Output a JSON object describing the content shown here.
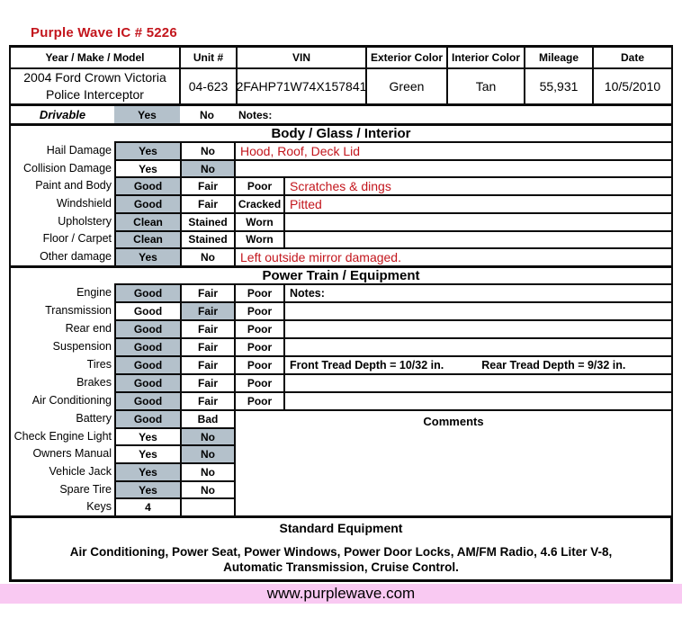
{
  "colors": {
    "red": "#c3161d",
    "highlight": "#b4c1cb",
    "pink": "#f9c9f2",
    "ink": "#0b0b0b"
  },
  "title": "Purple Wave IC # 5226",
  "vehicle": {
    "headers": [
      "Year / Make / Model",
      "Unit #",
      "VIN",
      "Exterior Color",
      "Interior Color",
      "Mileage",
      "Date"
    ],
    "model_line1": "2004 Ford Crown Victoria",
    "model_line2": "Police Interceptor",
    "unit": "04-623",
    "vin": "2FAHP71W74X157841",
    "exterior": "Green",
    "interior": "Tan",
    "mileage": "55,931",
    "date": "10/5/2010"
  },
  "drivable": {
    "label": "Drivable",
    "opts": [
      {
        "label": "Yes",
        "selected": true
      },
      {
        "label": "No",
        "selected": false
      }
    ],
    "notes_label": "Notes:"
  },
  "body": {
    "title": "Body / Glass / Interior",
    "rows": [
      {
        "label": "Hail Damage",
        "opts": [
          {
            "label": "Yes",
            "selected": true
          },
          {
            "label": "No",
            "selected": false
          }
        ],
        "note": "Hood, Roof, Deck Lid"
      },
      {
        "label": "Collision Damage",
        "opts": [
          {
            "label": "Yes",
            "selected": false
          },
          {
            "label": "No",
            "selected": true
          }
        ],
        "note": ""
      },
      {
        "label": "Paint and Body",
        "opts": [
          {
            "label": "Good",
            "selected": true
          },
          {
            "label": "Fair",
            "selected": false
          },
          {
            "label": "Poor",
            "selected": false
          }
        ],
        "note": "Scratches & dings"
      },
      {
        "label": "Windshield",
        "opts": [
          {
            "label": "Good",
            "selected": true
          },
          {
            "label": "Fair",
            "selected": false
          },
          {
            "label": "Cracked",
            "selected": false
          }
        ],
        "note": "Pitted"
      },
      {
        "label": "Upholstery",
        "opts": [
          {
            "label": "Clean",
            "selected": true
          },
          {
            "label": "Stained",
            "selected": false
          },
          {
            "label": "Worn",
            "selected": false
          }
        ],
        "note": ""
      },
      {
        "label": "Floor / Carpet",
        "opts": [
          {
            "label": "Clean",
            "selected": true
          },
          {
            "label": "Stained",
            "selected": false
          },
          {
            "label": "Worn",
            "selected": false
          }
        ],
        "note": ""
      },
      {
        "label": "Other damage",
        "opts": [
          {
            "label": "Yes",
            "selected": true
          },
          {
            "label": "No",
            "selected": false
          }
        ],
        "note": "Left outside mirror damaged."
      }
    ]
  },
  "power": {
    "title": "Power Train / Equipment",
    "rows": [
      {
        "label": "Engine",
        "opts": [
          {
            "label": "Good",
            "selected": true
          },
          {
            "label": "Fair",
            "selected": false
          },
          {
            "label": "Poor",
            "selected": false
          }
        ],
        "note": "Notes:",
        "note2": ""
      },
      {
        "label": "Transmission",
        "opts": [
          {
            "label": "Good",
            "selected": false
          },
          {
            "label": "Fair",
            "selected": true
          },
          {
            "label": "Poor",
            "selected": false
          }
        ],
        "note": "",
        "note2": ""
      },
      {
        "label": "Rear end",
        "opts": [
          {
            "label": "Good",
            "selected": true
          },
          {
            "label": "Fair",
            "selected": false
          },
          {
            "label": "Poor",
            "selected": false
          }
        ],
        "note": "",
        "note2": ""
      },
      {
        "label": "Suspension",
        "opts": [
          {
            "label": "Good",
            "selected": true
          },
          {
            "label": "Fair",
            "selected": false
          },
          {
            "label": "Poor",
            "selected": false
          }
        ],
        "note": "",
        "note2": ""
      },
      {
        "label": "Tires",
        "opts": [
          {
            "label": "Good",
            "selected": true
          },
          {
            "label": "Fair",
            "selected": false
          },
          {
            "label": "Poor",
            "selected": false
          }
        ],
        "note": "Front Tread Depth = 10/32 in.",
        "note2": "Rear Tread Depth = 9/32 in."
      },
      {
        "label": "Brakes",
        "opts": [
          {
            "label": "Good",
            "selected": true
          },
          {
            "label": "Fair",
            "selected": false
          },
          {
            "label": "Poor",
            "selected": false
          }
        ],
        "note": "",
        "note2": ""
      },
      {
        "label": "Air Conditioning",
        "opts": [
          {
            "label": "Good",
            "selected": true
          },
          {
            "label": "Fair",
            "selected": false
          },
          {
            "label": "Poor",
            "selected": false
          }
        ],
        "note": "",
        "note2": ""
      }
    ],
    "checks": [
      {
        "label": "Battery",
        "opts": [
          {
            "label": "Good",
            "selected": true
          },
          {
            "label": "Bad",
            "selected": false
          }
        ]
      },
      {
        "label": "Check Engine Light",
        "opts": [
          {
            "label": "Yes",
            "selected": false
          },
          {
            "label": "No",
            "selected": true
          }
        ]
      },
      {
        "label": "Owners Manual",
        "opts": [
          {
            "label": "Yes",
            "selected": false
          },
          {
            "label": "No",
            "selected": true
          }
        ]
      },
      {
        "label": "Vehicle Jack",
        "opts": [
          {
            "label": "Yes",
            "selected": true
          },
          {
            "label": "No",
            "selected": false
          }
        ]
      },
      {
        "label": "Spare Tire",
        "opts": [
          {
            "label": "Yes",
            "selected": true
          },
          {
            "label": "No",
            "selected": false
          }
        ]
      },
      {
        "label": "Keys",
        "opts": [
          {
            "label": "4",
            "selected": false
          },
          {
            "label": "",
            "selected": false
          }
        ]
      }
    ],
    "comments_label": "Comments"
  },
  "standard_equipment": {
    "title": "Standard Equipment",
    "line1": "Air Conditioning, Power Seat, Power Windows, Power Door Locks, AM/FM Radio, 4.6 Liter V-8,",
    "line2": "Automatic Transmission, Cruise Control."
  },
  "footer": {
    "url": "www.purplewave.com"
  }
}
